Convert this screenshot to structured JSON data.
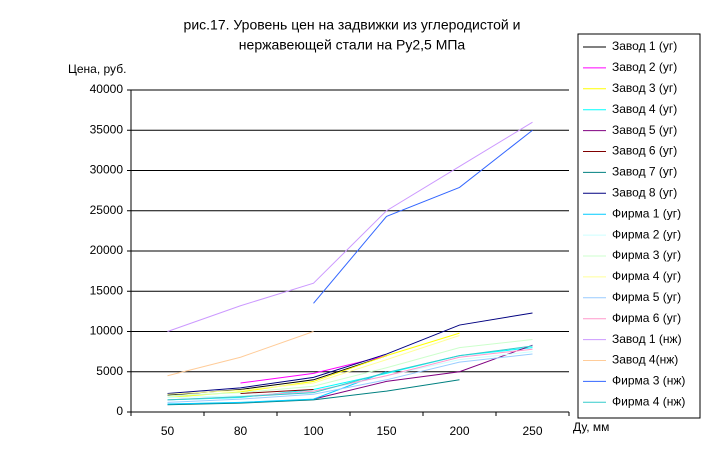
{
  "chart_data": {
    "type": "line",
    "title": [
      "рис.17. Уровень цен на задвижки из углеродистой и",
      "нержавеющей стали на Ру2,5 МПа"
    ],
    "y_label": "Цена, руб.",
    "x_label": "Ду, мм",
    "categories": [
      "50",
      "80",
      "100",
      "150",
      "200",
      "250"
    ],
    "ylim": [
      0,
      40000
    ],
    "yticks": [
      0,
      5000,
      10000,
      15000,
      20000,
      25000,
      30000,
      35000,
      40000
    ],
    "grid": true,
    "legend": "right",
    "series": [
      {
        "name": "Завод 1 (уг)",
        "color": "#000000",
        "values": [
          2100,
          2800,
          4000,
          7000,
          null,
          null
        ]
      },
      {
        "name": "Завод 2 (уг)",
        "color": "#ff00ff",
        "values": [
          null,
          3600,
          4800,
          7000,
          null,
          null
        ]
      },
      {
        "name": "Завод 3 (уг)",
        "color": "#ffff00",
        "values": [
          1800,
          2500,
          3800,
          7000,
          9800,
          null
        ]
      },
      {
        "name": "Завод 4 (уг)",
        "color": "#00ffff",
        "values": [
          1500,
          1800,
          2800,
          4800,
          7000,
          8000
        ]
      },
      {
        "name": "Завод 5 (уг)",
        "color": "#800080",
        "values": [
          null,
          null,
          1600,
          3800,
          5000,
          8300
        ]
      },
      {
        "name": "Завод 6 (уг)",
        "color": "#800000",
        "values": [
          null,
          2300,
          2800,
          null,
          null,
          null
        ]
      },
      {
        "name": "Завод 7 (уг)",
        "color": "#008080",
        "values": [
          900,
          1100,
          1500,
          2600,
          4000,
          null
        ]
      },
      {
        "name": "Завод 8 (уг)",
        "color": "#000080",
        "values": [
          2300,
          3000,
          4300,
          7200,
          10800,
          12300
        ]
      },
      {
        "name": "Фирма 1 (уг)",
        "color": "#00ccff",
        "values": [
          1000,
          1200,
          1600,
          5000,
          null,
          null
        ]
      },
      {
        "name": "Фирма 2 (уг)",
        "color": "#ccffff",
        "values": [
          1800,
          2000,
          2500,
          4500,
          6500,
          7500
        ]
      },
      {
        "name": "Фирма 3 (уг)",
        "color": "#ccffcc",
        "values": [
          2000,
          2400,
          3200,
          5500,
          8000,
          9000
        ]
      },
      {
        "name": "Фирма 4 (уг)",
        "color": "#ffff99",
        "values": [
          2200,
          2700,
          3600,
          6500,
          9500,
          null
        ]
      },
      {
        "name": "Фирма 5 (уг)",
        "color": "#99ccff",
        "values": [
          1200,
          1600,
          2200,
          4000,
          6200,
          7200
        ]
      },
      {
        "name": "Фирма 6 (уг)",
        "color": "#ff99cc",
        "values": [
          1500,
          1900,
          2600,
          4500,
          6800,
          7800
        ]
      },
      {
        "name": "Завод 1 (нж)",
        "color": "#cc99ff",
        "values": [
          10000,
          13200,
          16000,
          25000,
          30500,
          36000
        ]
      },
      {
        "name": "Завод 4(нж)",
        "color": "#ffcc99",
        "values": [
          4500,
          6800,
          10000,
          null,
          null,
          null
        ]
      },
      {
        "name": "Фирма 3 (нж)",
        "color": "#3366ff",
        "values": [
          null,
          null,
          13500,
          24300,
          27900,
          35000
        ]
      },
      {
        "name": "Фирма 4 (нж)",
        "color": "#33cccc",
        "values": [
          1500,
          1900,
          2400,
          4900,
          7000,
          8200
        ]
      }
    ]
  }
}
